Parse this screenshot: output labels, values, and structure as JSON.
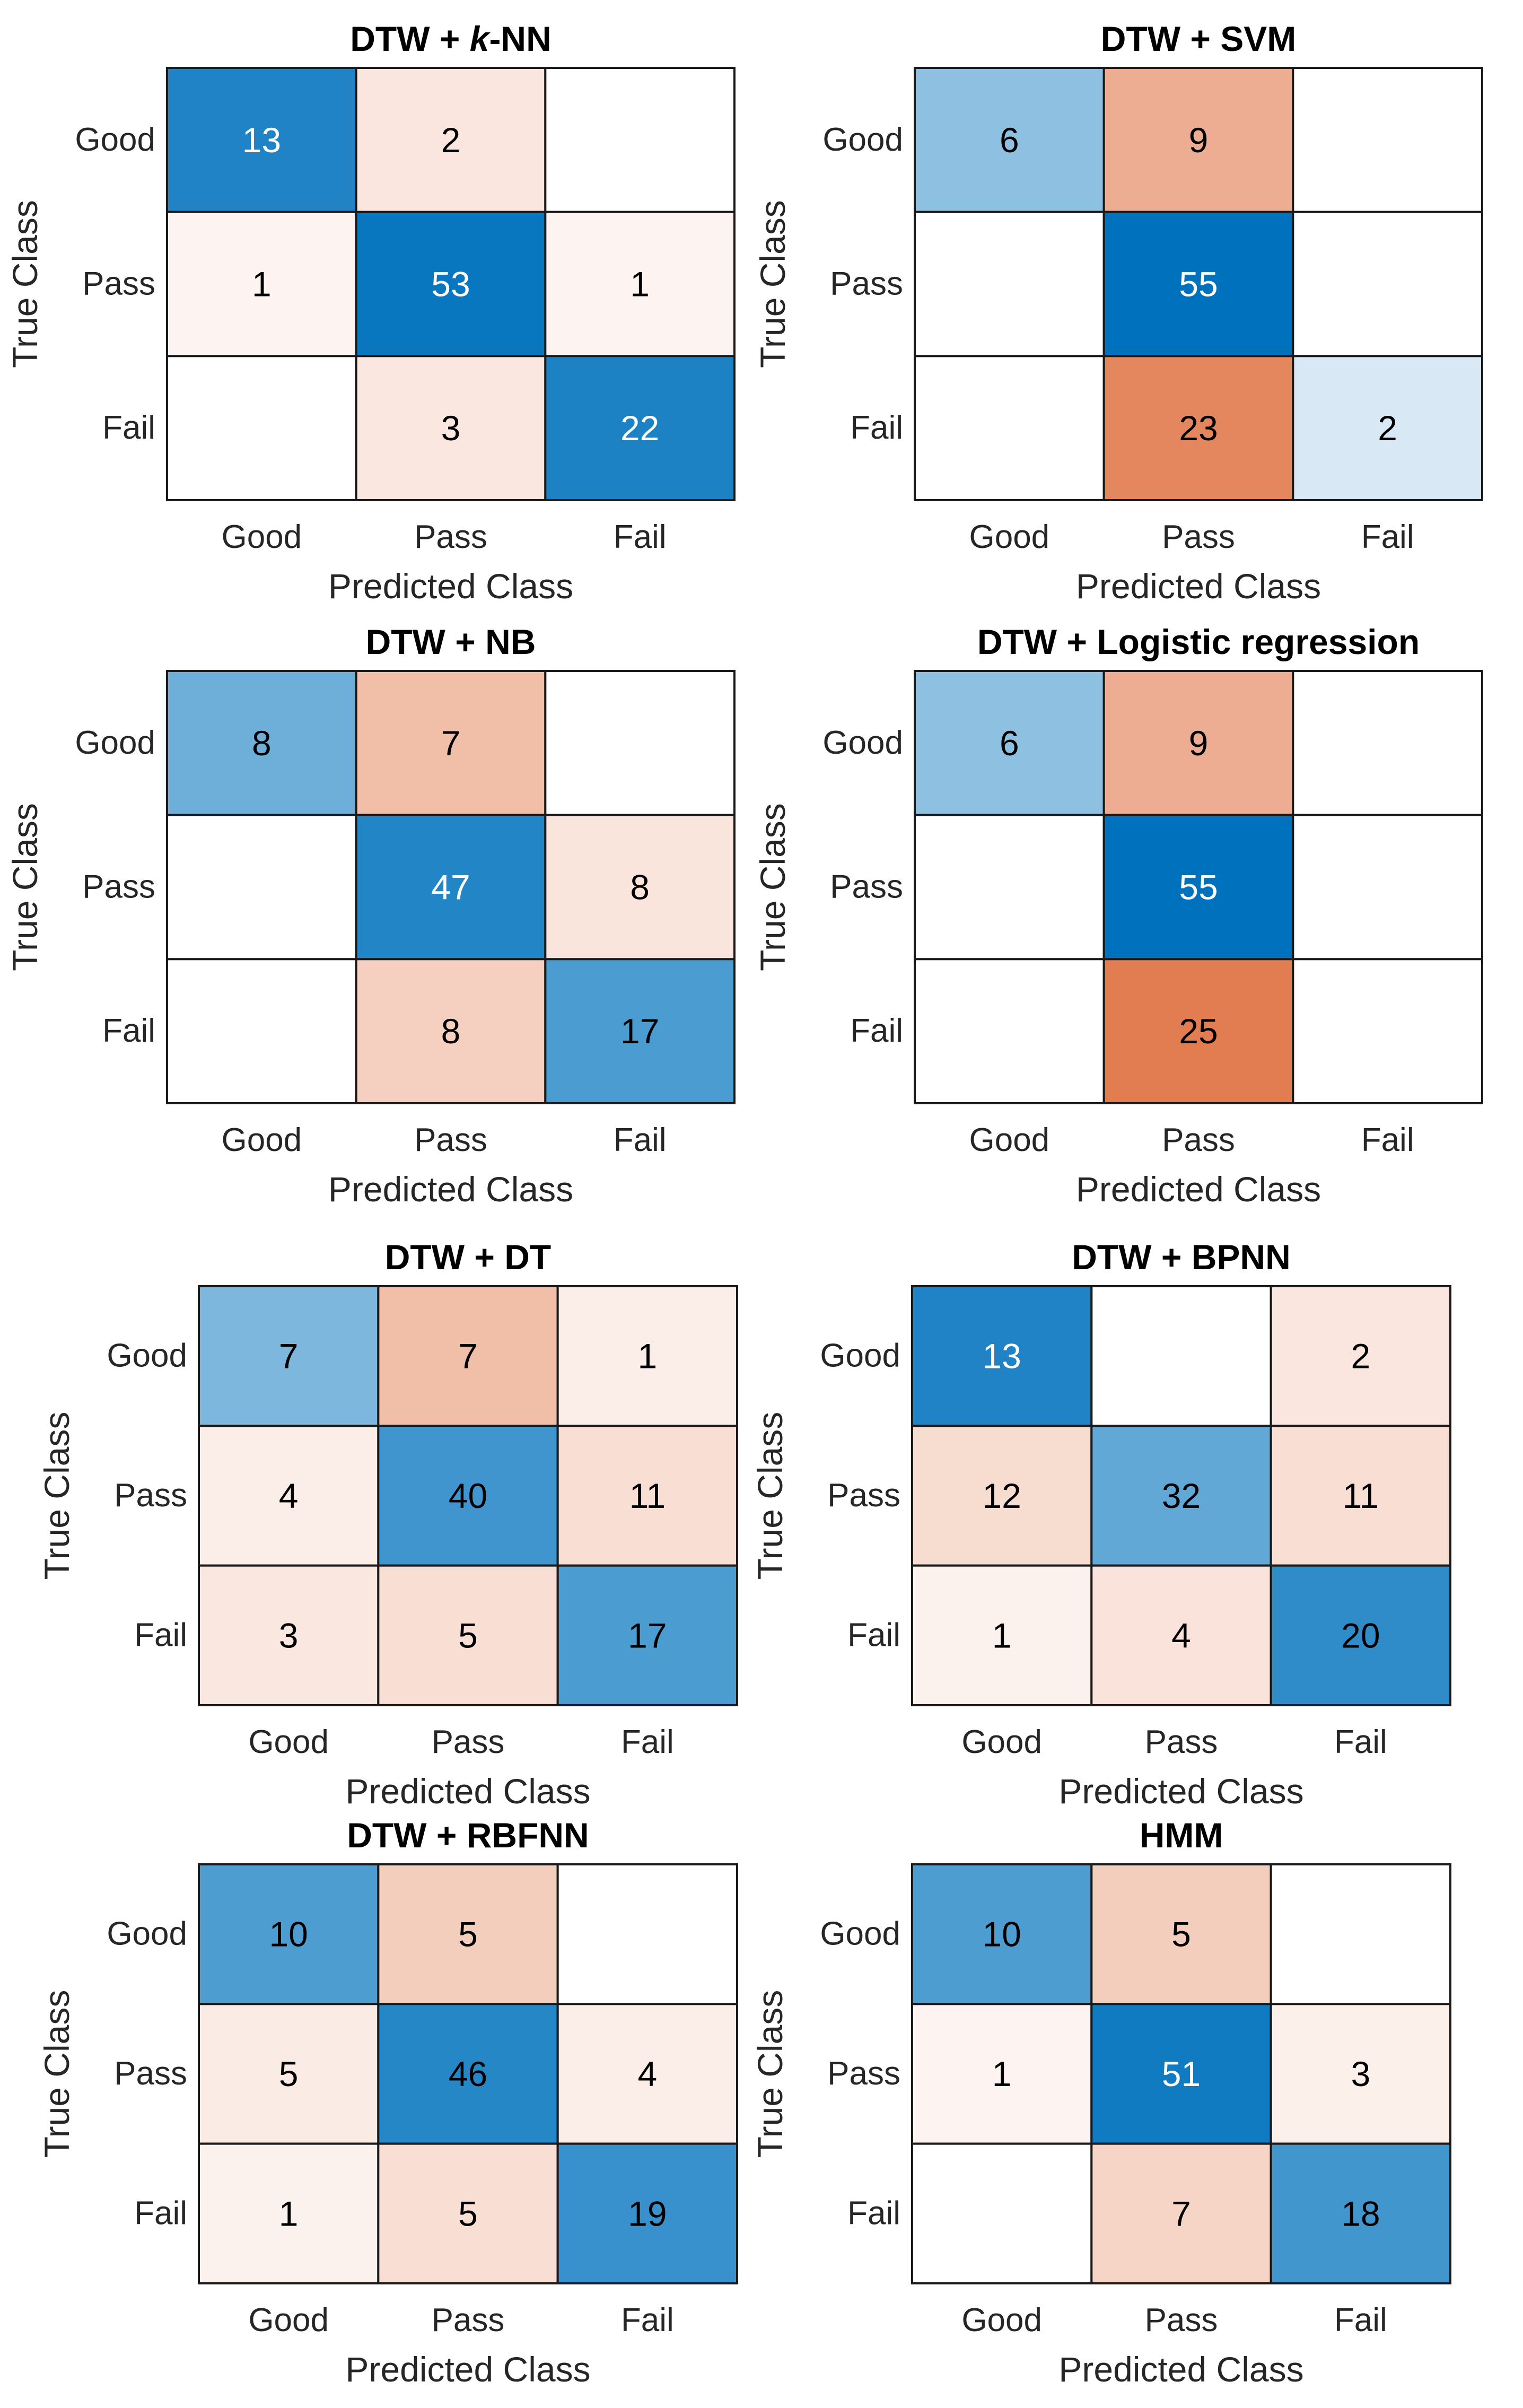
{
  "chart_data": [
    {
      "type": "heatmap",
      "title": "DTW + k-NN",
      "title_prefix": "DTW + ",
      "title_italic": "k",
      "title_suffix": "-NN",
      "xlabel": "Predicted Class",
      "ylabel": "True Class",
      "row_labels": [
        "Good",
        "Pass",
        "Fail"
      ],
      "col_labels": [
        "Good",
        "Pass",
        "Fail"
      ],
      "matrix": [
        [
          13,
          2,
          null
        ],
        [
          1,
          53,
          1
        ],
        [
          null,
          3,
          22
        ]
      ]
    },
    {
      "type": "heatmap",
      "title": "DTW + SVM",
      "xlabel": "Predicted Class",
      "ylabel": "True Class",
      "row_labels": [
        "Good",
        "Pass",
        "Fail"
      ],
      "col_labels": [
        "Good",
        "Pass",
        "Fail"
      ],
      "matrix": [
        [
          6,
          9,
          null
        ],
        [
          null,
          55,
          null
        ],
        [
          null,
          23,
          2
        ]
      ]
    },
    {
      "type": "heatmap",
      "title": "DTW + NB",
      "xlabel": "Predicted Class",
      "ylabel": "True Class",
      "row_labels": [
        "Good",
        "Pass",
        "Fail"
      ],
      "col_labels": [
        "Good",
        "Pass",
        "Fail"
      ],
      "matrix": [
        [
          8,
          7,
          null
        ],
        [
          null,
          47,
          8
        ],
        [
          null,
          8,
          17
        ]
      ]
    },
    {
      "type": "heatmap",
      "title": "DTW + Logistic regression",
      "xlabel": "Predicted Class",
      "ylabel": "True Class",
      "row_labels": [
        "Good",
        "Pass",
        "Fail"
      ],
      "col_labels": [
        "Good",
        "Pass",
        "Fail"
      ],
      "matrix": [
        [
          6,
          9,
          null
        ],
        [
          null,
          55,
          null
        ],
        [
          null,
          25,
          null
        ]
      ]
    },
    {
      "type": "heatmap",
      "title": "DTW + DT",
      "xlabel": "Predicted Class",
      "ylabel": "True Class",
      "row_labels": [
        "Good",
        "Pass",
        "Fail"
      ],
      "col_labels": [
        "Good",
        "Pass",
        "Fail"
      ],
      "matrix": [
        [
          7,
          7,
          1
        ],
        [
          4,
          40,
          11
        ],
        [
          3,
          5,
          17
        ]
      ]
    },
    {
      "type": "heatmap",
      "title": "DTW + BPNN",
      "xlabel": "Predicted Class",
      "ylabel": "True Class",
      "row_labels": [
        "Good",
        "Pass",
        "Fail"
      ],
      "col_labels": [
        "Good",
        "Pass",
        "Fail"
      ],
      "matrix": [
        [
          13,
          null,
          2
        ],
        [
          12,
          32,
          11
        ],
        [
          1,
          4,
          20
        ]
      ]
    },
    {
      "type": "heatmap",
      "title": "DTW + RBFNN",
      "xlabel": "Predicted Class",
      "ylabel": "True Class",
      "row_labels": [
        "Good",
        "Pass",
        "Fail"
      ],
      "col_labels": [
        "Good",
        "Pass",
        "Fail"
      ],
      "matrix": [
        [
          10,
          5,
          null
        ],
        [
          5,
          46,
          4
        ],
        [
          1,
          5,
          19
        ]
      ]
    },
    {
      "type": "heatmap",
      "title": "HMM",
      "xlabel": "Predicted Class",
      "ylabel": "True Class",
      "row_labels": [
        "Good",
        "Pass",
        "Fail"
      ],
      "col_labels": [
        "Good",
        "Pass",
        "Fail"
      ],
      "matrix": [
        [
          10,
          5,
          null
        ],
        [
          1,
          51,
          3
        ],
        [
          null,
          7,
          18
        ]
      ]
    }
  ],
  "colors": {
    "diagonal_max": "#0072bd",
    "offdiag_max": "#d95319",
    "text_dark": "#000000",
    "text_light": "#ffffff",
    "empty": "#ffffff"
  }
}
